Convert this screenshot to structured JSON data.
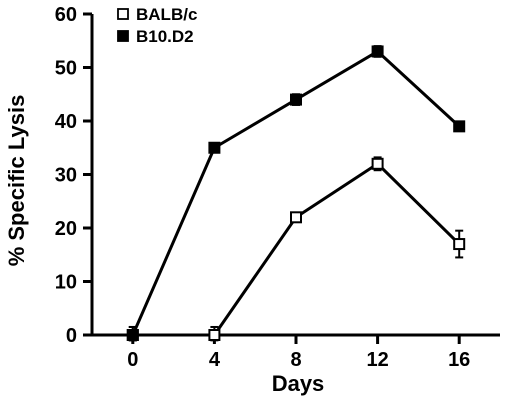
{
  "chart_data": {
    "type": "line",
    "title": "",
    "xlabel": "Days",
    "ylabel": "% Specific Lysis",
    "xlim": [
      -2,
      18
    ],
    "ylim": [
      0,
      60
    ],
    "xticks": [
      0,
      4,
      8,
      12,
      16
    ],
    "yticks": [
      0,
      10,
      20,
      30,
      40,
      50,
      60
    ],
    "grid": false,
    "legend_position": "top-left",
    "series": [
      {
        "name": "BALB/c",
        "marker": "open-square",
        "color": "#000000",
        "x": [
          0,
          4,
          8,
          12,
          16
        ],
        "y": [
          0,
          0,
          22,
          32,
          17
        ],
        "error": [
          1.5,
          1.5,
          0.8,
          1.2,
          2.5
        ]
      },
      {
        "name": "B10.D2",
        "marker": "filled-square",
        "color": "#000000",
        "x": [
          0,
          4,
          8,
          12,
          16
        ],
        "y": [
          0,
          35,
          44,
          53,
          39
        ],
        "error": [
          1.5,
          0.5,
          1.0,
          1.0,
          0.5
        ]
      }
    ]
  }
}
